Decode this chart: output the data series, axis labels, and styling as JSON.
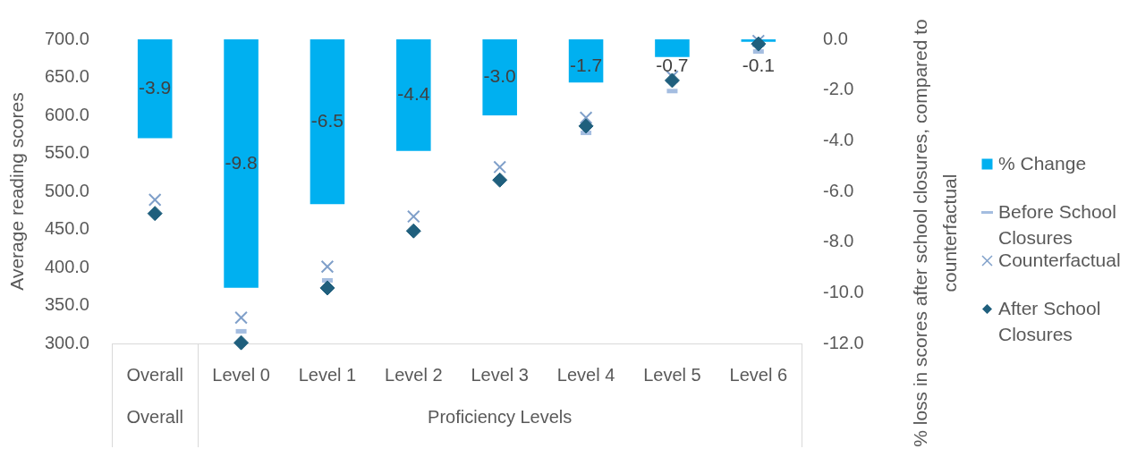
{
  "chart_data": {
    "type": "bar",
    "categories": [
      "Overall",
      "Level 0",
      "Level 1",
      "Level 2",
      "Level 3",
      "Level 4",
      "Level 5",
      "Level 6"
    ],
    "ylabel": "Average reading scores",
    "y2label": "% loss in scores after school closures, compared to counterfactual",
    "ylim": [
      300,
      700
    ],
    "yticks": [
      {
        "value": 300,
        "label": "300.0"
      },
      {
        "value": 350,
        "label": "350.0"
      },
      {
        "value": 400,
        "label": "400.0"
      },
      {
        "value": 450,
        "label": "450.0"
      },
      {
        "value": 500,
        "label": "500.0"
      },
      {
        "value": 550,
        "label": "550.0"
      },
      {
        "value": 600,
        "label": "600.0"
      },
      {
        "value": 650,
        "label": "650.0"
      },
      {
        "value": 700,
        "label": "700.0"
      }
    ],
    "y2lim": [
      -12,
      0
    ],
    "y2ticks": [
      {
        "value": -12,
        "label": "-12.0"
      },
      {
        "value": -10,
        "label": "-10.0"
      },
      {
        "value": -8,
        "label": "-8.0"
      },
      {
        "value": -6,
        "label": "-6.0"
      },
      {
        "value": -4,
        "label": "-4.0"
      },
      {
        "value": -2,
        "label": "-2.0"
      },
      {
        "value": 0,
        "label": "0.0"
      }
    ],
    "annotations": [
      "Overall",
      "Proficiency Levels"
    ],
    "legend": "right",
    "series": [
      {
        "name": "% Change",
        "axis": "y2",
        "color": "#00b0f0",
        "values": [
          -3.9,
          -9.8,
          -6.5,
          -4.4,
          -3.0,
          -1.7,
          -0.7,
          -0.1
        ],
        "value_labels": [
          "-3.9",
          "-9.8",
          "-6.5",
          "-4.4",
          "-3.0",
          "-1.7",
          "-0.7",
          "-0.1"
        ]
      },
      {
        "name": "Before School Closures",
        "type": "scatter",
        "color": "#a4bde0",
        "values": [
          null,
          316,
          383,
          null,
          null,
          577,
          632,
          684
        ]
      },
      {
        "name": "Counterfactual",
        "type": "scatter",
        "marker": "cross",
        "color": "#7f9fc9",
        "values": [
          489,
          334,
          401,
          467,
          532,
          597,
          651,
          698
        ]
      },
      {
        "name": "After School Closures",
        "type": "scatter",
        "marker": "diamond",
        "color": "#1f5f7d",
        "values": [
          471,
          301,
          373,
          448,
          515,
          586,
          646,
          694
        ]
      }
    ]
  }
}
